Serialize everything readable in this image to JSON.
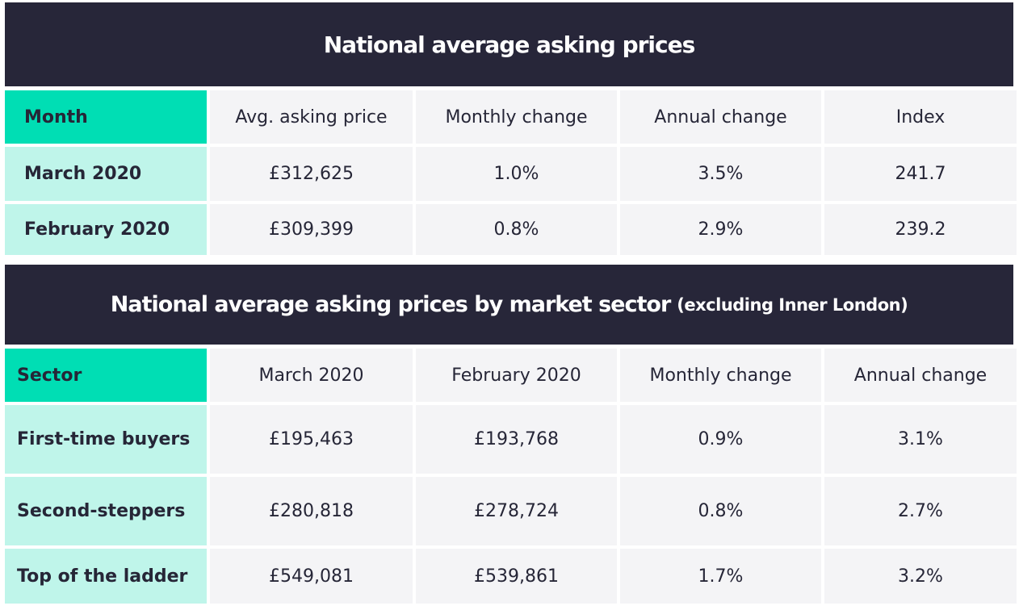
{
  "table1": {
    "title": "National average asking prices",
    "headers": [
      "Month",
      "Avg. asking price",
      "Monthly change",
      "Annual change",
      "Index"
    ],
    "rows": [
      [
        "March 2020",
        "£312,625",
        "1.0%",
        "3.5%",
        "241.7"
      ],
      [
        "February 2020",
        "£309,399",
        "0.8%",
        "2.9%",
        "239.2"
      ]
    ]
  },
  "table2": {
    "title": "National average asking prices by market sector",
    "subtitle": "(excluding Inner London)",
    "headers": [
      "Sector",
      "March 2020",
      "February 2020",
      "Monthly change",
      "Annual change"
    ],
    "rows": [
      [
        "First-time buyers",
        "£195,463",
        "£193,768",
        "0.9%",
        "3.1%"
      ],
      [
        "Second-steppers",
        "£280,818",
        "£278,724",
        "0.8%",
        "2.7%"
      ],
      [
        "Top of the ladder",
        "£549,081",
        "£539,861",
        "1.7%",
        "3.2%"
      ]
    ]
  },
  "colors": {
    "banner": "#272639",
    "header_accent": "#00deb4",
    "first_column": "#bff5ea",
    "cell": "#f4f4f6",
    "text": "#262637"
  }
}
